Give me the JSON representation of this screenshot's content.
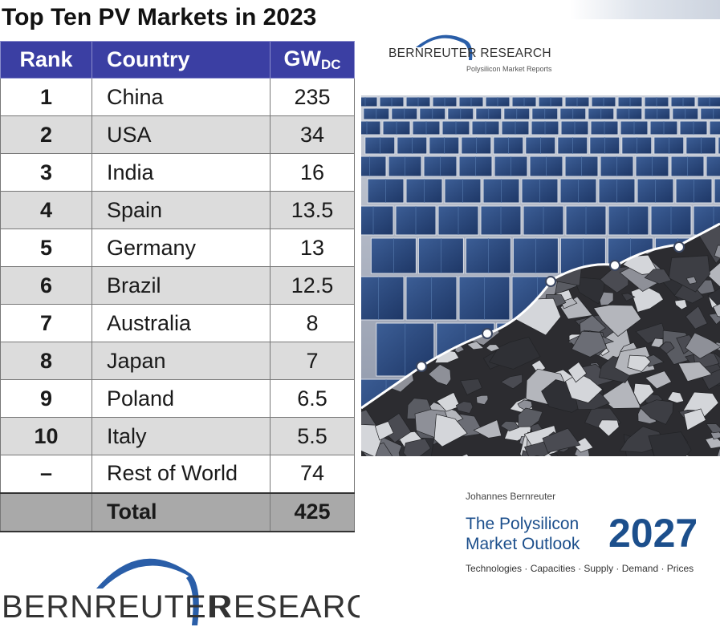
{
  "table": {
    "title": "Top Ten PV Markets in 2023",
    "headers": {
      "rank": "Rank",
      "country": "Country",
      "gw": "GW",
      "gw_sub": "DC"
    },
    "rows": [
      {
        "rank": "1",
        "country": "China",
        "gw": "235"
      },
      {
        "rank": "2",
        "country": "USA",
        "gw": "34"
      },
      {
        "rank": "3",
        "country": "India",
        "gw": "16"
      },
      {
        "rank": "4",
        "country": "Spain",
        "gw": "13.5"
      },
      {
        "rank": "5",
        "country": "Germany",
        "gw": "13"
      },
      {
        "rank": "6",
        "country": "Brazil",
        "gw": "12.5"
      },
      {
        "rank": "7",
        "country": "Australia",
        "gw": "8"
      },
      {
        "rank": "8",
        "country": "Japan",
        "gw": "7"
      },
      {
        "rank": "9",
        "country": "Poland",
        "gw": "6.5"
      },
      {
        "rank": "10",
        "country": "Italy",
        "gw": "5.5"
      },
      {
        "rank": "–",
        "country": "Rest of World",
        "gw": "74"
      }
    ],
    "total": {
      "label": "Total",
      "gw": "425"
    }
  },
  "logo": {
    "word1": "BERNREUTER",
    "word2": "RESEARCH"
  },
  "cover": {
    "logo_name": "BERNREUTER RESEARCH",
    "logo_tagline": "Polysilicon Market Reports",
    "author": "Johannes Bernreuter",
    "title_line1": "The Polysilicon",
    "title_line2": "Market Outlook",
    "year": "2027",
    "subtitle": "Technologies · Capacities · Supply · Demand · Prices"
  },
  "colors": {
    "header_bg": "#3b3fa3",
    "row_alt": "#dcdcdc",
    "total_bg": "#a9a9a9",
    "logo_arc": "#2a5ea8",
    "cover_blue": "#1c4f8c"
  },
  "icons": {
    "photo": "solar-panels-silicon-chunks-image"
  }
}
